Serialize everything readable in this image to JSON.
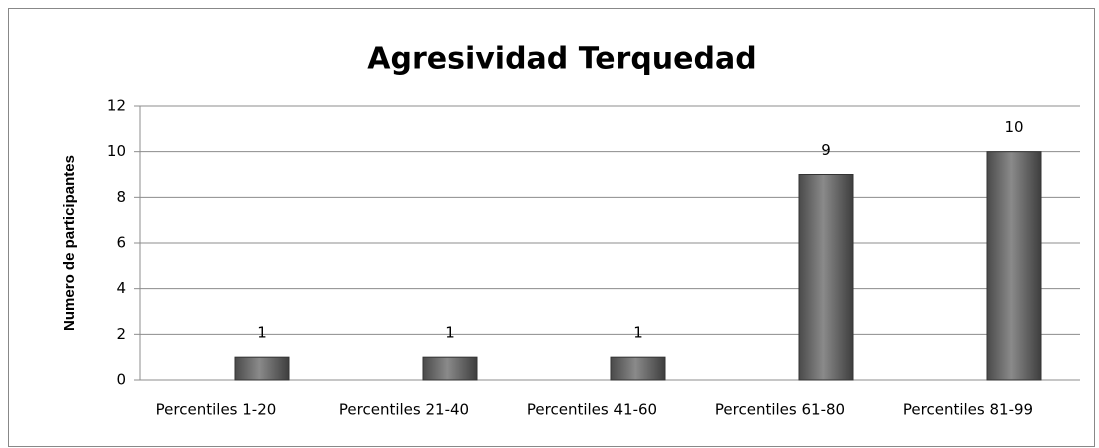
{
  "chart_data": {
    "type": "bar",
    "title": "Agresividad Terquedad",
    "y_label": "Numero de participantes",
    "categories": [
      "Percentiles 1-20",
      "Percentiles 21-40",
      "Percentiles 41-60",
      "Percentiles 61-80",
      "Percentiles 81-99"
    ],
    "values": [
      1,
      1,
      1,
      9,
      10
    ],
    "color": "#6b6b6b",
    "ylim": [
      0,
      12
    ],
    "yticks": [
      0,
      2,
      4,
      6,
      8,
      10,
      12
    ],
    "grid": true
  }
}
